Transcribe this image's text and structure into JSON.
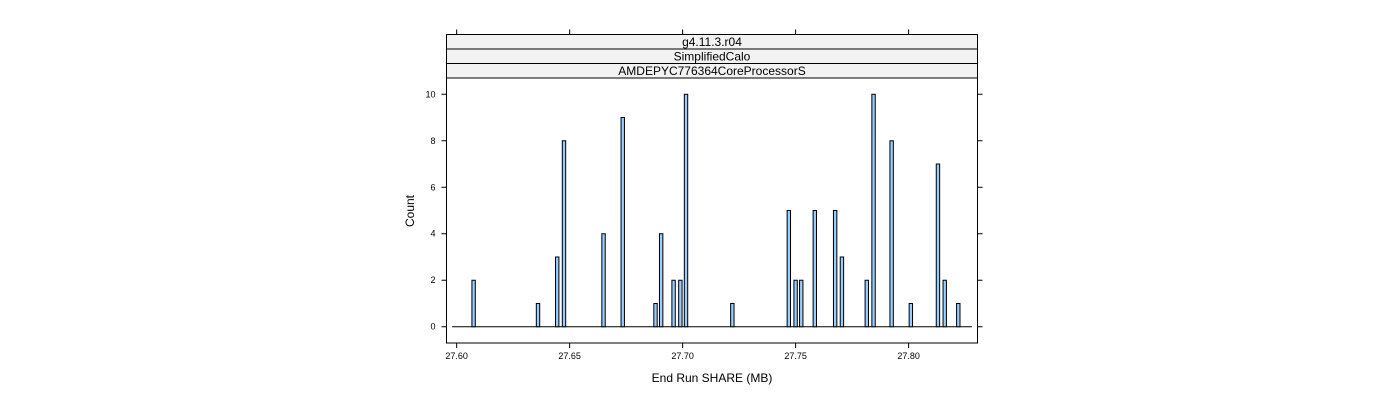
{
  "chart_data": {
    "type": "bar",
    "strips": [
      "g4.11.3.r04",
      "SimplifiedCalo",
      "AMDEPYC776364CoreProcessorS"
    ],
    "xlabel": "End Run SHARE (MB)",
    "ylabel": "Count",
    "xlim": [
      27.5955,
      27.8305
    ],
    "ylim": [
      -0.7,
      10.7
    ],
    "x_ticks": [
      27.6,
      27.65,
      27.7,
      27.75,
      27.8
    ],
    "x_tick_labels": [
      "27.60",
      "27.65",
      "27.70",
      "27.75",
      "27.80"
    ],
    "y_ticks": [
      0,
      2,
      4,
      6,
      8,
      10
    ],
    "y_tick_labels": [
      "0",
      "2",
      "4",
      "6",
      "8",
      "10"
    ],
    "baseline_range": [
      27.598,
      27.828
    ],
    "bin_width": 0.0015,
    "bars": [
      {
        "x": 27.6075,
        "count": 2
      },
      {
        "x": 27.636,
        "count": 1
      },
      {
        "x": 27.6445,
        "count": 3
      },
      {
        "x": 27.6475,
        "count": 8
      },
      {
        "x": 27.665,
        "count": 4
      },
      {
        "x": 27.6735,
        "count": 9
      },
      {
        "x": 27.688,
        "count": 1
      },
      {
        "x": 27.6905,
        "count": 4
      },
      {
        "x": 27.696,
        "count": 2
      },
      {
        "x": 27.699,
        "count": 2
      },
      {
        "x": 27.7015,
        "count": 10
      },
      {
        "x": 27.722,
        "count": 1
      },
      {
        "x": 27.747,
        "count": 5
      },
      {
        "x": 27.75,
        "count": 2
      },
      {
        "x": 27.7525,
        "count": 2
      },
      {
        "x": 27.7585,
        "count": 5
      },
      {
        "x": 27.7675,
        "count": 5
      },
      {
        "x": 27.7705,
        "count": 3
      },
      {
        "x": 27.7815,
        "count": 2
      },
      {
        "x": 27.7845,
        "count": 10
      },
      {
        "x": 27.7925,
        "count": 8
      },
      {
        "x": 27.801,
        "count": 1
      },
      {
        "x": 27.813,
        "count": 7
      },
      {
        "x": 27.816,
        "count": 2
      },
      {
        "x": 27.822,
        "count": 1
      }
    ],
    "bar_fill": "#99ccff",
    "bar_stroke": "#000000",
    "strip_fill": "#f2f2f2"
  }
}
